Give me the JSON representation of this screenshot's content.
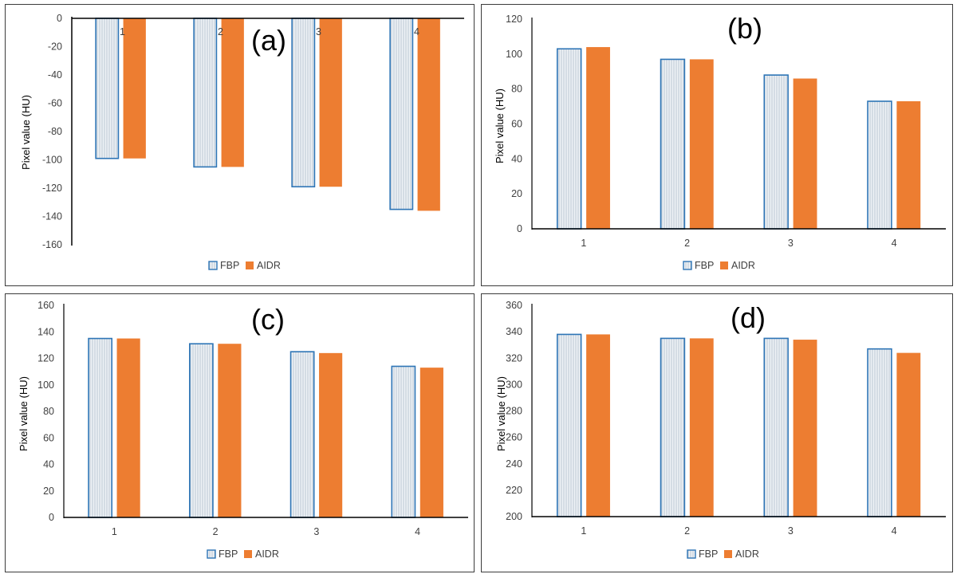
{
  "colors": {
    "fbp_fill": "#d4dde6",
    "fbp_stroke": "#2e75b6",
    "aidr_fill": "#ed7d31",
    "axis": "#000000",
    "text": "#404040"
  },
  "chart_data": [
    {
      "type": "bar",
      "panel_label": "(a)",
      "ylabel": "Pixel value (HU)",
      "categories": [
        "1",
        "2",
        "3",
        "4"
      ],
      "ylim": [
        -160,
        0
      ],
      "ytick_step": 20,
      "series": [
        {
          "name": "FBP",
          "values": [
            -99,
            -105,
            -119,
            -135
          ]
        },
        {
          "name": "AIDR",
          "values": [
            -99,
            -105,
            -119,
            -136
          ]
        }
      ],
      "legend": [
        "FBP",
        "AIDR"
      ],
      "legend_position": "bottom"
    },
    {
      "type": "bar",
      "panel_label": "(b)",
      "ylabel": "Pixel value (HU)",
      "categories": [
        "1",
        "2",
        "3",
        "4"
      ],
      "ylim": [
        0,
        120
      ],
      "ytick_step": 20,
      "series": [
        {
          "name": "FBP",
          "values": [
            103,
            97,
            88,
            73
          ]
        },
        {
          "name": "AIDR",
          "values": [
            104,
            97,
            86,
            73
          ]
        }
      ],
      "legend": [
        "FBP",
        "AIDR"
      ],
      "legend_position": "bottom"
    },
    {
      "type": "bar",
      "panel_label": "(c)",
      "ylabel": "Pixel value (HU)",
      "categories": [
        "1",
        "2",
        "3",
        "4"
      ],
      "ylim": [
        0,
        160
      ],
      "ytick_step": 20,
      "series": [
        {
          "name": "FBP",
          "values": [
            135,
            131,
            125,
            114
          ]
        },
        {
          "name": "AIDR",
          "values": [
            135,
            131,
            124,
            113
          ]
        }
      ],
      "legend": [
        "FBP",
        "AIDR"
      ],
      "legend_position": "bottom"
    },
    {
      "type": "bar",
      "panel_label": "(d)",
      "ylabel": "Pixel value (HU)",
      "categories": [
        "1",
        "2",
        "3",
        "4"
      ],
      "ylim": [
        200,
        360
      ],
      "ytick_step": 20,
      "series": [
        {
          "name": "FBP",
          "values": [
            338,
            335,
            335,
            327
          ]
        },
        {
          "name": "AIDR",
          "values": [
            338,
            335,
            334,
            324
          ]
        }
      ],
      "legend": [
        "FBP",
        "AIDR"
      ],
      "legend_position": "bottom"
    }
  ]
}
